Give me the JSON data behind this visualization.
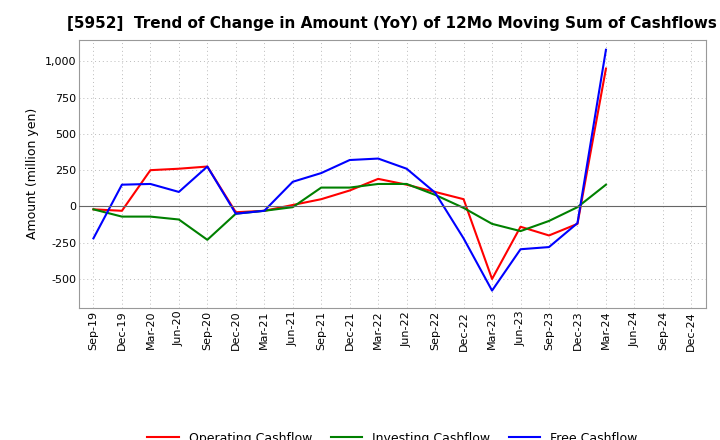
{
  "title": "[5952]  Trend of Change in Amount (YoY) of 12Mo Moving Sum of Cashflows",
  "ylabel": "Amount (million yen)",
  "x_labels": [
    "Sep-19",
    "Dec-19",
    "Mar-20",
    "Jun-20",
    "Sep-20",
    "Dec-20",
    "Mar-21",
    "Jun-21",
    "Sep-21",
    "Dec-21",
    "Mar-22",
    "Jun-22",
    "Sep-22",
    "Dec-22",
    "Mar-23",
    "Jun-23",
    "Sep-23",
    "Dec-23",
    "Mar-24",
    "Jun-24",
    "Sep-24",
    "Dec-24"
  ],
  "operating": [
    -20,
    -30,
    250,
    260,
    275,
    -40,
    -30,
    10,
    50,
    110,
    190,
    150,
    100,
    50,
    -500,
    -140,
    -200,
    -120,
    950,
    null,
    null,
    null
  ],
  "investing": [
    -20,
    -70,
    -70,
    -90,
    -230,
    -50,
    -30,
    -5,
    130,
    130,
    155,
    155,
    80,
    -10,
    -120,
    -170,
    -100,
    -5,
    150,
    null,
    null,
    null
  ],
  "free": [
    -220,
    150,
    155,
    100,
    275,
    -50,
    -30,
    170,
    230,
    320,
    330,
    260,
    95,
    -220,
    -580,
    -295,
    -280,
    -115,
    1080,
    null,
    null,
    null
  ],
  "operating_color": "#ff0000",
  "investing_color": "#008000",
  "free_color": "#0000ff",
  "ylim": [
    -700,
    1150
  ],
  "yticks": [
    -500,
    -250,
    0,
    250,
    500,
    750,
    1000
  ],
  "grid_color": "#bbbbbb",
  "background_color": "#ffffff",
  "legend_labels": [
    "Operating Cashflow",
    "Investing Cashflow",
    "Free Cashflow"
  ],
  "title_fontsize": 11,
  "axis_fontsize": 8,
  "ylabel_fontsize": 9
}
